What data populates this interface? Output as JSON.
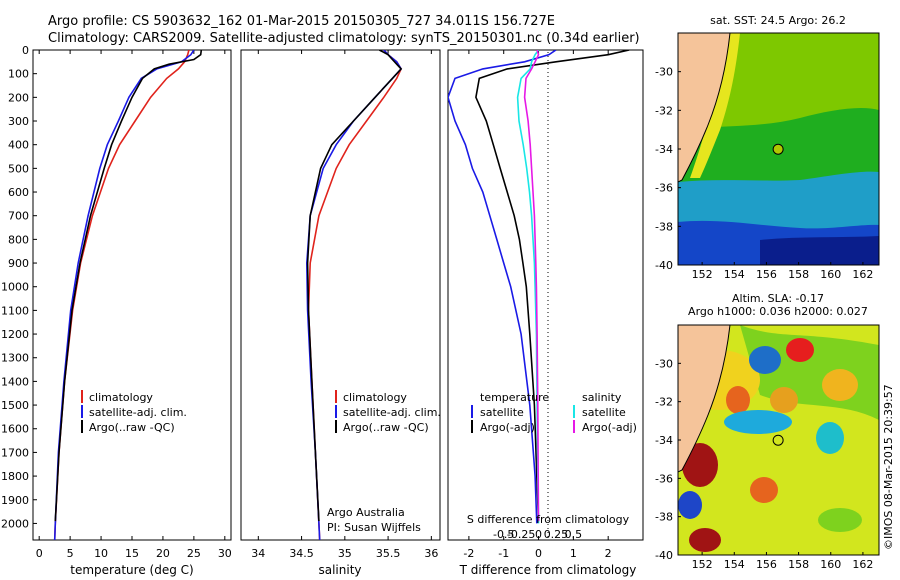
{
  "header": {
    "title_line1": "Argo profile: CS 5903632_162 01-Mar-2015 20150305_727 34.011S 156.727E",
    "title_line2": "Climatology: CARS2009. Satellite-adjusted climatology: synTS_20150301.nc (0.34d earlier)"
  },
  "colors": {
    "climatology": "#e0231c",
    "satellite": "#1a1ae6",
    "argo": "#000000",
    "cyan": "#19e6e6",
    "magenta": "#e619e6",
    "land": "#f5c49a"
  },
  "chart_data": [
    {
      "type": "line",
      "name": "temperature-profile",
      "xlabel": "temperature (deg C)",
      "ylabel": "",
      "xlim": [
        -1,
        31
      ],
      "ylim": [
        2070,
        0
      ],
      "xticks": [
        "0",
        "5",
        "10",
        "15",
        "20",
        "25",
        "30"
      ],
      "yticks": [
        "0",
        "100",
        "200",
        "300",
        "400",
        "500",
        "600",
        "700",
        "800",
        "900",
        "1000",
        "1100",
        "1200",
        "1300",
        "1400",
        "1500",
        "1600",
        "1700",
        "1800",
        "1900",
        "2000"
      ],
      "legend": [
        "climatology",
        "satellite-adj. clim.",
        "Argo(..raw -QC)"
      ],
      "series": [
        {
          "name": "climatology",
          "color": "red",
          "depth": [
            0,
            20,
            50,
            80,
            120,
            200,
            300,
            400,
            500,
            700,
            900,
            1100,
            1400,
            1700,
            2000,
            2070
          ],
          "values": [
            24.2,
            24.0,
            23.5,
            22.5,
            20.6,
            18.0,
            15.5,
            13.0,
            11.2,
            8.6,
            6.7,
            5.4,
            4.1,
            3.2,
            2.6,
            2.5
          ]
        },
        {
          "name": "satellite-adj. clim.",
          "color": "blue",
          "depth": [
            0,
            20,
            50,
            80,
            120,
            200,
            300,
            400,
            500,
            700,
            900,
            1100,
            1400,
            1700,
            2000,
            2070
          ],
          "values": [
            25.0,
            24.5,
            23.0,
            19.0,
            16.5,
            14.5,
            12.8,
            11.0,
            9.8,
            7.9,
            6.3,
            5.1,
            4.0,
            3.1,
            2.6,
            2.5
          ]
        },
        {
          "name": "Argo",
          "color": "black",
          "depth": [
            0,
            20,
            40,
            60,
            80,
            120,
            200,
            300,
            400,
            500,
            700,
            900,
            1100,
            1400,
            1700,
            1990
          ],
          "values": [
            26.2,
            26.1,
            25.0,
            21.0,
            18.6,
            16.7,
            15.0,
            13.3,
            11.7,
            10.5,
            8.3,
            6.6,
            5.3,
            4.1,
            3.2,
            2.6
          ]
        }
      ]
    },
    {
      "type": "line",
      "name": "salinity-profile",
      "xlabel": "salinity",
      "xlim": [
        33.8,
        36.1
      ],
      "ylim": [
        2070,
        0
      ],
      "xticks": [
        "34",
        "34.5",
        "35",
        "35.5",
        "36"
      ],
      "legend": [
        "climatology",
        "satellite-adj. clim.",
        "Argo(..raw -QC)"
      ],
      "annotations": [
        "Argo Australia",
        "PI: Susan Wijffels"
      ],
      "series": [
        {
          "name": "climatology",
          "color": "red",
          "depth": [
            0,
            20,
            50,
            80,
            120,
            200,
            300,
            400,
            500,
            700,
            900,
            1100,
            1400,
            1700,
            2000,
            2070
          ],
          "values": [
            35.45,
            35.5,
            35.6,
            35.65,
            35.6,
            35.45,
            35.25,
            35.05,
            34.9,
            34.7,
            34.6,
            34.58,
            34.62,
            34.66,
            34.7,
            34.71
          ]
        },
        {
          "name": "satellite-adj. clim.",
          "color": "blue",
          "depth": [
            0,
            20,
            50,
            80,
            120,
            200,
            300,
            400,
            500,
            700,
            900,
            1100,
            1400,
            1700,
            2000,
            2070
          ],
          "values": [
            35.45,
            35.5,
            35.6,
            35.65,
            35.55,
            35.35,
            35.1,
            34.9,
            34.75,
            34.6,
            34.56,
            34.57,
            34.61,
            34.66,
            34.7,
            34.71
          ]
        },
        {
          "name": "Argo",
          "color": "black",
          "depth": [
            0,
            20,
            40,
            60,
            80,
            120,
            200,
            300,
            400,
            500,
            700,
            900,
            1100,
            1400,
            1700,
            1990
          ],
          "values": [
            35.4,
            35.5,
            35.55,
            35.6,
            35.65,
            35.55,
            35.35,
            35.1,
            34.85,
            34.72,
            34.6,
            34.57,
            34.58,
            34.62,
            34.66,
            34.7
          ]
        }
      ]
    },
    {
      "type": "line",
      "name": "difference-profile",
      "xlabel": "T difference from climatology",
      "xlabel_top": "S difference from climatology",
      "xlim": [
        -2.6,
        3.0
      ],
      "ylim": [
        2070,
        0
      ],
      "xticks": [
        "-2",
        "-1",
        "0",
        "1",
        "2"
      ],
      "xticks_top": [
        "-0.5",
        "-0.25",
        "0",
        "0.25",
        "0.5"
      ],
      "legend": [
        "temperature",
        "satellite",
        "Argo(-adj)",
        "salinity",
        "satellite",
        "Argo(-adj)"
      ],
      "series": [
        {
          "name": "temperature satellite",
          "color": "blue",
          "depth": [
            0,
            20,
            50,
            80,
            120,
            200,
            300,
            400,
            500,
            600,
            700,
            800,
            900,
            1000,
            1200,
            1500,
            1800,
            2000
          ],
          "values": [
            0.5,
            0.3,
            -0.4,
            -1.6,
            -2.4,
            -2.6,
            -2.4,
            -2.1,
            -1.9,
            -1.6,
            -1.4,
            -1.2,
            -1.0,
            -0.8,
            -0.5,
            -0.25,
            -0.1,
            -0.05
          ]
        },
        {
          "name": "temperature Argo(-adj)",
          "color": "black",
          "depth": [
            0,
            20,
            50,
            80,
            120,
            200,
            300,
            400,
            500,
            600,
            700,
            800,
            900,
            1000,
            1200,
            1500,
            1800,
            1990
          ],
          "values": [
            2.6,
            2.0,
            0.5,
            -0.9,
            -1.7,
            -1.8,
            -1.5,
            -1.3,
            -1.1,
            -0.9,
            -0.7,
            -0.55,
            -0.45,
            -0.35,
            -0.25,
            -0.12,
            -0.05,
            0.0
          ]
        },
        {
          "name": "salinity satellite",
          "color": "cyan",
          "depth": [
            0,
            20,
            50,
            80,
            120,
            200,
            300,
            400,
            500,
            600,
            700,
            800,
            900,
            1000,
            1200,
            1500,
            1800,
            2000
          ],
          "values": [
            0.0,
            -0.05,
            -0.1,
            -0.12,
            -0.25,
            -0.3,
            -0.28,
            -0.22,
            -0.17,
            -0.13,
            -0.1,
            -0.08,
            -0.06,
            -0.05,
            -0.03,
            -0.02,
            -0.01,
            0.0
          ]
        },
        {
          "name": "salinity Argo(-adj)",
          "color": "magenta",
          "depth": [
            0,
            20,
            50,
            80,
            120,
            200,
            300,
            400,
            500,
            600,
            700,
            800,
            900,
            1000,
            1200,
            1500,
            1800,
            1990
          ],
          "values": [
            -0.02,
            0.0,
            -0.05,
            -0.1,
            -0.18,
            -0.2,
            -0.15,
            -0.12,
            -0.1,
            -0.08,
            -0.06,
            -0.05,
            -0.04,
            -0.03,
            -0.02,
            -0.01,
            -0.005,
            0.0
          ]
        }
      ]
    },
    {
      "type": "heatmap",
      "name": "sst-map",
      "title": "sat. SST: 24.5 Argo: 26.2",
      "xlim": [
        150.5,
        163
      ],
      "ylim": [
        -40,
        -28
      ],
      "xticks": [
        "152",
        "154",
        "156",
        "158",
        "160",
        "162"
      ],
      "yticks": [
        "-30",
        "-32",
        "-34",
        "-36",
        "-38",
        "-40"
      ],
      "marker": {
        "lon": 156.727,
        "lat": -34.011
      }
    },
    {
      "type": "heatmap",
      "name": "sla-map",
      "title_line1": "Altim. SLA: -0.17",
      "title_line2": "Argo h1000: 0.036 h2000: 0.027",
      "xlim": [
        150.5,
        163
      ],
      "ylim": [
        -40,
        -28
      ],
      "xticks": [
        "152",
        "154",
        "156",
        "158",
        "160",
        "162"
      ],
      "yticks": [
        "-30",
        "-32",
        "-34",
        "-36",
        "-38",
        "-40"
      ],
      "marker": {
        "lon": 156.727,
        "lat": -34.011
      }
    }
  ],
  "credit": "©IMOS 08-Mar-2015 20:39:57"
}
